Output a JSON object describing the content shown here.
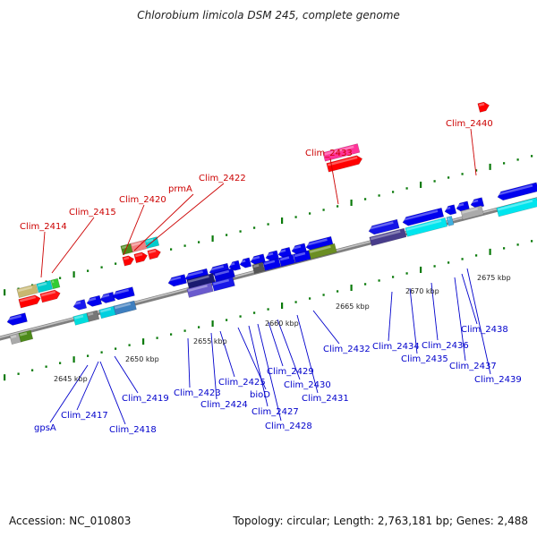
{
  "title": "Chlorobium limicola DSM 245, complete genome",
  "footer": {
    "accession": "Accession: NC_010803",
    "summary": "Topology: circular; Length: 2,763,181 bp; Genes: 2,488"
  },
  "colors": {
    "label_top": "#cc0000",
    "label_bottom": "#0000cc",
    "backbone": "#808080",
    "tick_mark": "#0a7a0a"
  },
  "ticks": [
    "2645 kbp",
    "2650 kbp",
    "2655 kbp",
    "2660 kbp",
    "2665 kbp",
    "2670 kbp",
    "2675 kbp"
  ],
  "labels_top": [
    "Clim_2414",
    "Clim_2415",
    "Clim_2420",
    "prmA",
    "Clim_2422",
    "Clim_2433",
    "Clim_2440"
  ],
  "labels_bottom": [
    "gpsA",
    "Clim_2417",
    "Clim_2418",
    "Clim_2419",
    "Clim_2423",
    "Clim_2424",
    "Clim_2425",
    "bioD",
    "Clim_2427",
    "Clim_2428",
    "Clim_2429",
    "Clim_2430",
    "Clim_2431",
    "Clim_2432",
    "Clim_2434",
    "Clim_2435",
    "Clim_2436",
    "Clim_2437",
    "Clim_2438",
    "Clim_2439"
  ]
}
